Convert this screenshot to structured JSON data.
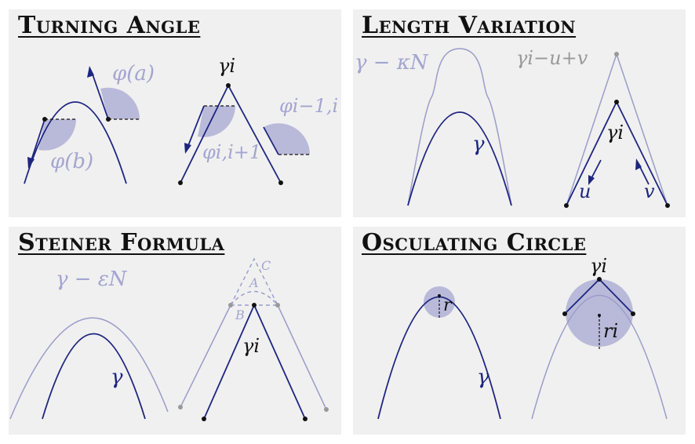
{
  "colors": {
    "panel_bg": "#f0f0f0",
    "curve_dark": "#1e2580",
    "curve_light": "#9a9cc9",
    "shade": "#b9bad9",
    "label_light": "#a3a5d0",
    "gray_point": "#999999"
  },
  "panels": {
    "turning_angle": {
      "title": "Turning Angle",
      "label_phi_a": "φ(a)",
      "label_phi_b": "φ(b)",
      "label_gamma_i": "γi",
      "label_phi_prev": "φi−1,i",
      "label_phi_next": "φi,i+1"
    },
    "length_variation": {
      "title": "Length Variation",
      "label_offset": "γ − κN",
      "label_gamma": "γ",
      "label_moved_vertex": "γi−u+v",
      "label_gamma_i": "γi",
      "label_u": "u",
      "label_v": "v"
    },
    "steiner_formula": {
      "title": "Steiner Formula",
      "label_offset": "γ − εN",
      "label_gamma": "γ",
      "label_gamma_i": "γi",
      "label_A": "A",
      "label_B": "B",
      "label_C": "C"
    },
    "osculating_circle": {
      "title": "Osculating Circle",
      "label_gamma": "γ",
      "label_r": "r",
      "label_gamma_i": "γi",
      "label_r_i": "ri"
    }
  }
}
